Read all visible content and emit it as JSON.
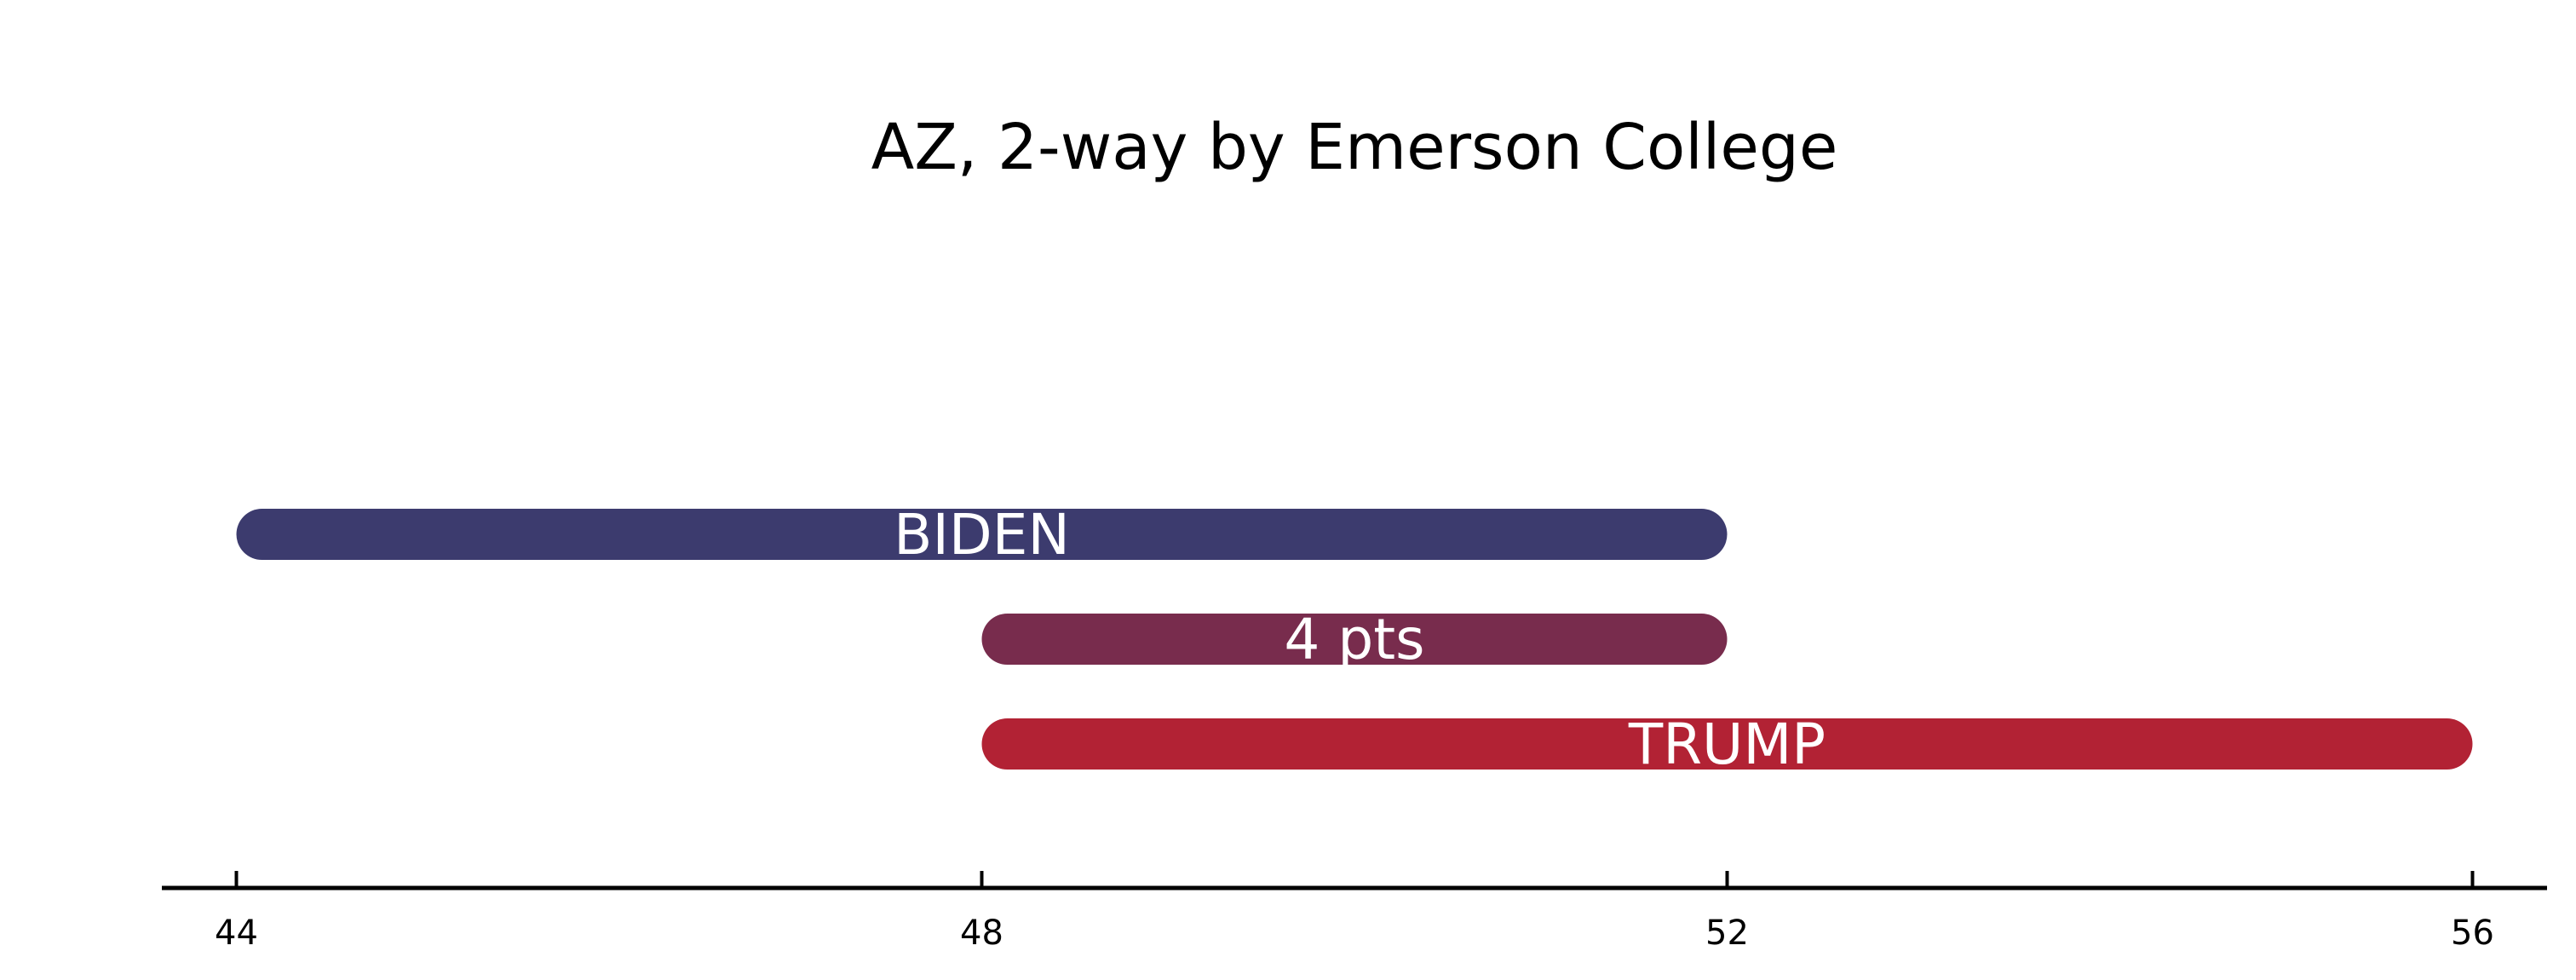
{
  "chart_data": {
    "type": "bar",
    "orientation": "horizontal-range",
    "title": "AZ, 2-way by Emerson College",
    "xlabel": "",
    "ylabel": "",
    "xlim": [
      43.6,
      56.4
    ],
    "xticks": [
      44,
      48,
      52,
      56
    ],
    "grid": false,
    "bars": [
      {
        "label": "BIDEN",
        "start": 44,
        "end": 52,
        "color": "#3c3b6e"
      },
      {
        "label": "4 pts",
        "start": 48,
        "end": 52,
        "color": "#782c4d"
      },
      {
        "label": "TRUMP",
        "start": 48,
        "end": 56,
        "color": "#b22234"
      }
    ]
  }
}
